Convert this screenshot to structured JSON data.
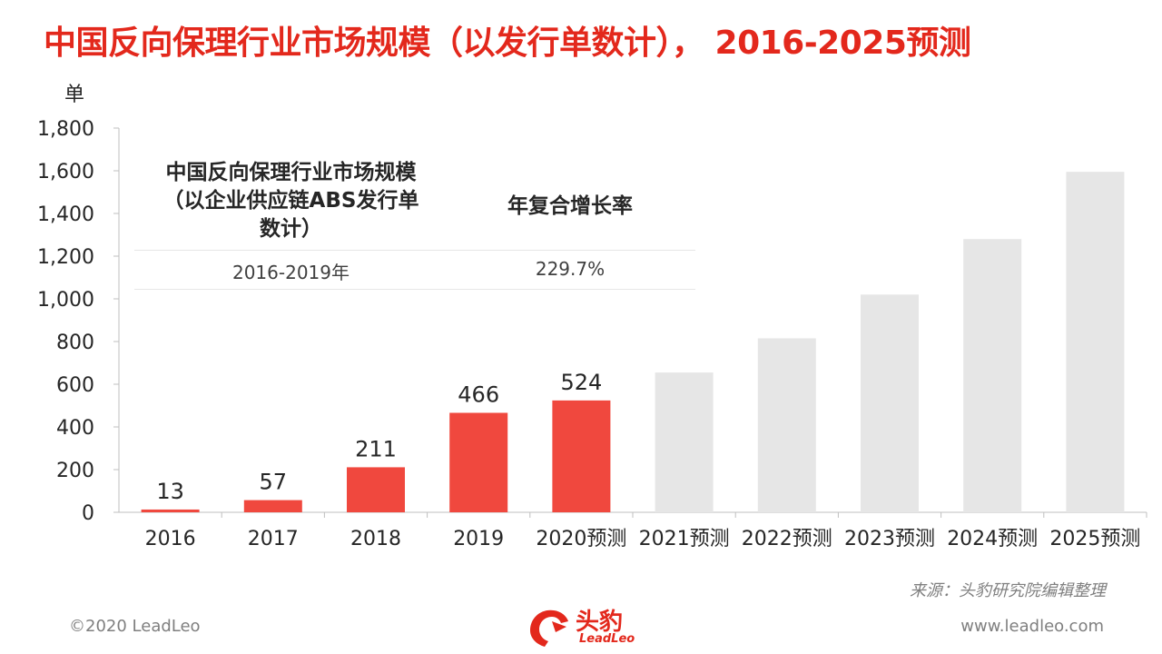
{
  "title": "中国反向保理行业市场规模（以发行单数计），  2016-2025预测",
  "chart_data": {
    "type": "bar",
    "yunit": "单",
    "ylim": [
      0,
      1800
    ],
    "yticks": [
      0,
      200,
      400,
      600,
      800,
      1000,
      1200,
      1400,
      1600,
      1800
    ],
    "ytick_labels": [
      "0",
      "200",
      "400",
      "600",
      "800",
      "1,000",
      "1,200",
      "1,400",
      "1,600",
      "1,800"
    ],
    "categories": [
      "2016",
      "2017",
      "2018",
      "2019",
      "2020预测",
      "2021预测",
      "2022预测",
      "2023预测",
      "2024预测",
      "2025预测"
    ],
    "values": [
      13,
      57,
      211,
      466,
      524,
      655,
      815,
      1020,
      1280,
      1595
    ],
    "data_labels": [
      "13",
      "57",
      "211",
      "466",
      "524",
      "",
      "",
      "",
      "",
      ""
    ],
    "colors": {
      "actual": "#f0483e",
      "forecast": "#e6e6e6"
    },
    "highlighted_count": 5,
    "grid": false
  },
  "info_table": {
    "header_col1": [
      "中国反向保理行业市场规模",
      "（以企业供应链ABS发行单",
      "数计）"
    ],
    "header_col2": "年复合增长率",
    "period": "2016-2019年",
    "cagr": "229.7%"
  },
  "footer": {
    "source": "来源：头豹研究院编辑整理",
    "copyright": "©2020 LeadLeo",
    "website": "www.leadleo.com",
    "logo_cn": "头豹",
    "logo_en": "LeadLeo"
  }
}
